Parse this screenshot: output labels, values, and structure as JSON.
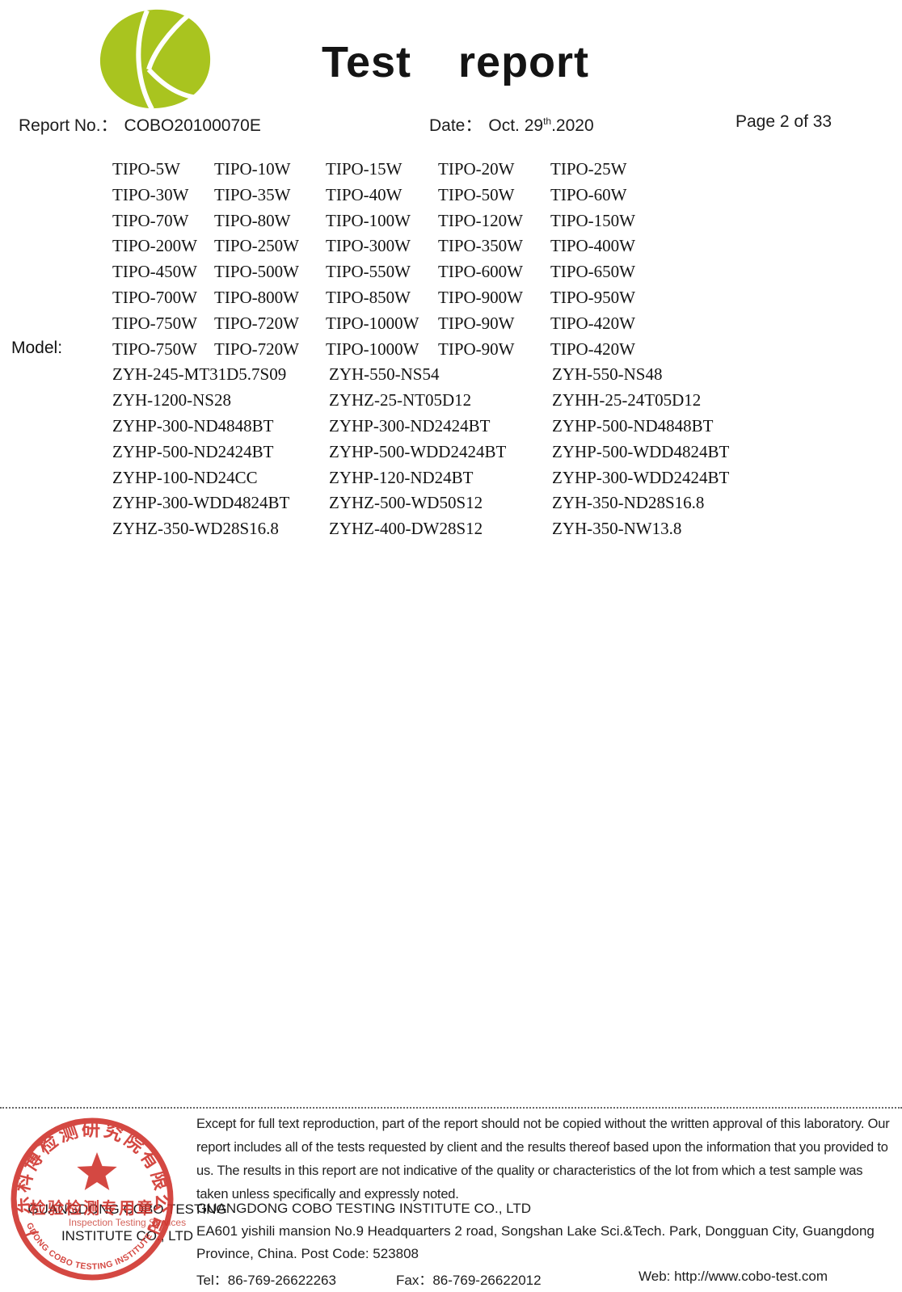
{
  "header": {
    "title": "Test report",
    "report_no_label": "Report No.：",
    "report_no_value": "COBO20100070E",
    "date_label": "Date：",
    "date_day": "Oct. 29",
    "date_ordinal": "th",
    "date_year": ".2020",
    "page_label": "Page 2 of 33",
    "logo_color": "#a9c41f"
  },
  "model": {
    "label": "Model:",
    "tipo_rows": [
      [
        "TIPO-5W",
        "TIPO-10W",
        "TIPO-15W",
        "TIPO-20W",
        "TIPO-25W"
      ],
      [
        "TIPO-30W",
        "TIPO-35W",
        "TIPO-40W",
        "TIPO-50W",
        "TIPO-60W"
      ],
      [
        "TIPO-70W",
        "TIPO-80W",
        "TIPO-100W",
        "TIPO-120W",
        "TIPO-150W"
      ],
      [
        "TIPO-200W",
        "TIPO-250W",
        "TIPO-300W",
        "TIPO-350W",
        "TIPO-400W"
      ],
      [
        "TIPO-450W",
        "TIPO-500W",
        "TIPO-550W",
        "TIPO-600W",
        "TIPO-650W"
      ],
      [
        "TIPO-700W",
        "TIPO-800W",
        "TIPO-850W",
        "TIPO-900W",
        "TIPO-950W"
      ],
      [
        "TIPO-750W",
        "TIPO-720W",
        "TIPO-1000W",
        "TIPO-90W",
        "TIPO-420W"
      ],
      [
        "TIPO-750W",
        "TIPO-720W",
        "TIPO-1000W",
        "TIPO-90W",
        "TIPO-420W"
      ]
    ],
    "zyh_rows": [
      [
        "ZYH-245-MT31D5.7S09",
        "ZYH-550-NS54",
        "ZYH-550-NS48"
      ],
      [
        "ZYH-1200-NS28",
        "ZYHZ-25-NT05D12",
        "ZYHH-25-24T05D12"
      ],
      [
        "ZYHP-300-ND4848BT",
        "ZYHP-300-ND2424BT",
        "ZYHP-500-ND4848BT"
      ],
      [
        "ZYHP-500-ND2424BT",
        "ZYHP-500-WDD2424BT",
        "ZYHP-500-WDD4824BT"
      ],
      [
        "ZYHP-100-ND24CC",
        "ZYHP-120-ND24BT",
        "ZYHP-300-WDD2424BT"
      ],
      [
        "ZYHP-300-WDD4824BT",
        "ZYHZ-500-WD50S12",
        "ZYH-350-ND28S16.8"
      ],
      [
        "ZYHZ-350-WD28S16.8",
        "ZYHZ-400-DW28S12",
        "ZYH-350-NW13.8"
      ]
    ]
  },
  "footer": {
    "disclaimer": "Except for full text reproduction, part of the report should not be copied without the written approval of this laboratory. Our report includes all of the tests requested by client and the results thereof based upon the information that you provided to us. The results in this report are not indicative of the quality or characteristics of the lot from which a test sample was taken unless specifically and expressly noted.",
    "company_name": "GUANGDONG COBO TESTING INSTITUTE CO., LTD",
    "address_line1": "EA601 yishili mansion No.9 Headquarters 2 road, Songshan Lake Sci.&Tech. Park, Dongguan City, Guangdong",
    "address_line2": "Province, China. Post Code: 523808",
    "tel_label": "Tel：",
    "tel_value": "86-769-26622263",
    "fax_label": "Fax：",
    "fax_value": "86-769-26622012",
    "web_label": "Web: ",
    "web_value": "http://www.cobo-test.com"
  },
  "stamp": {
    "color": "#cf2f28",
    "top_arc_text": "广东科博检测研究院有限公司",
    "center_text": "检验检测专用章",
    "bottom_arc_text": "GUANGDONG COBO TESTING INSTITUTE CO.,LTD",
    "underlay_line1": "GUANGDONG COBO TESTING",
    "underlay_faint": "Inspection Testing Services",
    "underlay_line2": "INSTITUTE CO., LTD"
  }
}
